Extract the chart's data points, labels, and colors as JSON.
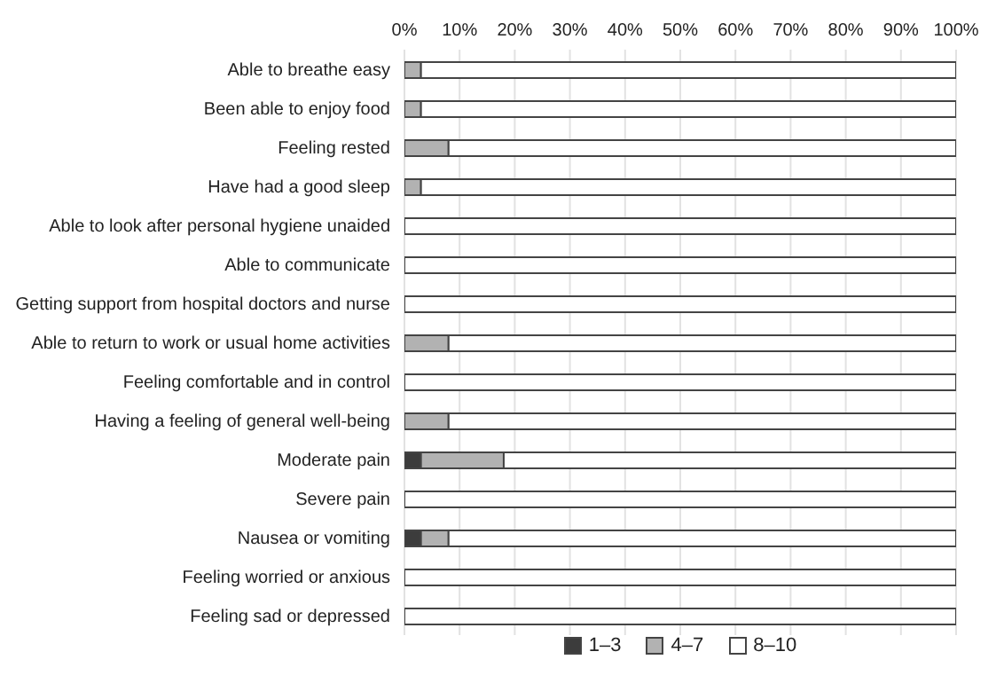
{
  "chart_data": {
    "type": "bar",
    "orientation": "horizontal",
    "stacked": true,
    "categories": [
      "Able to breathe easy",
      "Been able to enjoy food",
      "Feeling rested",
      "Have had a good sleep",
      "Able to look after personal hygiene unaided",
      "Able to communicate",
      "Getting support from hospital doctors and nurse",
      "Able to return to work or usual home activities",
      "Feeling comfortable and in control",
      "Having a feeling of general well-being",
      "Moderate pain",
      "Severe pain",
      "Nausea or vomiting",
      "Feeling worried or anxious",
      "Feeling sad or depressed"
    ],
    "series": [
      {
        "name": "1–3",
        "color": "#3c3c3c",
        "values": [
          0,
          0,
          0,
          0,
          0,
          0,
          0,
          0,
          0,
          0,
          3,
          0,
          3,
          0,
          0
        ]
      },
      {
        "name": "4–7",
        "color": "#b2b2b2",
        "values": [
          3,
          3,
          8,
          3,
          0,
          0,
          0,
          8,
          0,
          8,
          15,
          0,
          5,
          0,
          0
        ]
      },
      {
        "name": "8–10",
        "color": "#ffffff",
        "values": [
          97,
          97,
          92,
          97,
          100,
          100,
          100,
          92,
          100,
          92,
          82,
          100,
          92,
          100,
          100
        ]
      }
    ],
    "xlim": [
      0,
      100
    ],
    "xticks": [
      {
        "value": 0,
        "label": "0%"
      },
      {
        "value": 10,
        "label": "10%"
      },
      {
        "value": 20,
        "label": "20%"
      },
      {
        "value": 30,
        "label": "30%"
      },
      {
        "value": 40,
        "label": "40%"
      },
      {
        "value": 50,
        "label": "50%"
      },
      {
        "value": 60,
        "label": "60%"
      },
      {
        "value": 70,
        "label": "70%"
      },
      {
        "value": 80,
        "label": "80%"
      },
      {
        "value": 90,
        "label": "90%"
      },
      {
        "value": 100,
        "label": "100%"
      }
    ],
    "grid": "x",
    "legend": "bottom"
  }
}
